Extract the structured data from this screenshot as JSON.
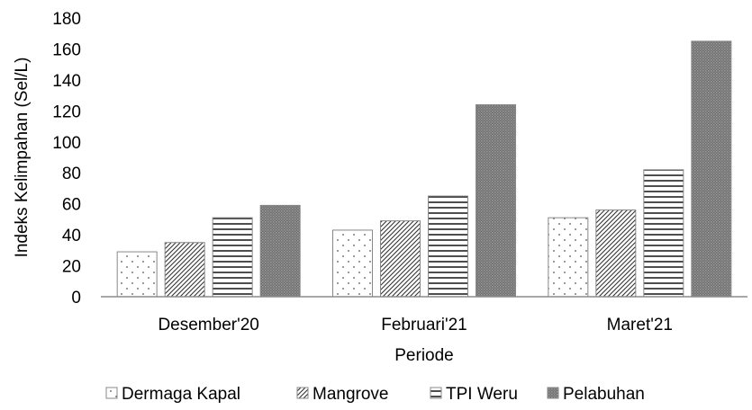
{
  "chart_data": {
    "type": "bar",
    "categories": [
      "Desember'20",
      "Februari'21",
      "Maret'21"
    ],
    "series": [
      {
        "name": "Dermaga Kapal",
        "values": [
          29,
          43,
          51
        ],
        "pattern": "dots"
      },
      {
        "name": "Mangrove",
        "values": [
          35,
          49,
          56
        ],
        "pattern": "diagonal"
      },
      {
        "name": "TPI Weru",
        "values": [
          51,
          65,
          82
        ],
        "pattern": "horizontal"
      },
      {
        "name": "Pelabuhan",
        "values": [
          59,
          124,
          165
        ],
        "pattern": "dense"
      }
    ],
    "xlabel": "Periode",
    "ylabel": "Indeks Kelimpahan (Sel/L)",
    "ylim": [
      0,
      180
    ],
    "yticks": [
      0,
      20,
      40,
      60,
      80,
      100,
      120,
      140,
      160,
      180
    ],
    "grid": false,
    "legend_position": "bottom"
  }
}
